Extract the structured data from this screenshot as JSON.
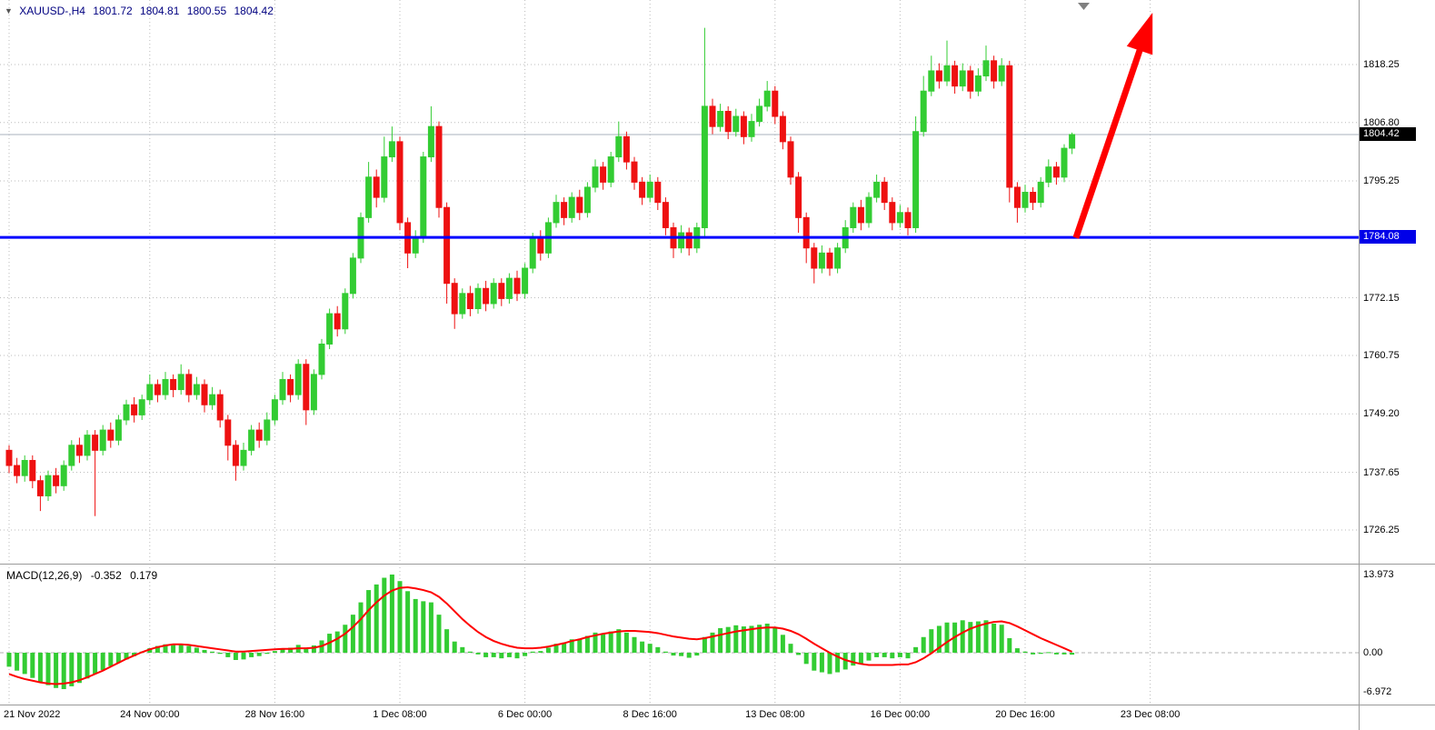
{
  "header": {
    "dropdown_icon": "▼",
    "symbol": "XAUUSD-,H4",
    "open": "1801.72",
    "high": "1804.81",
    "low": "1800.55",
    "close": "1804.42"
  },
  "macd": {
    "label": "MACD(12,26,9)",
    "main": "-0.352",
    "signal": "0.179"
  },
  "price_axis": {
    "ticks": [
      1818.25,
      1806.8,
      1795.25,
      1772.15,
      1760.75,
      1749.2,
      1737.65,
      1726.25
    ],
    "bid": "1804.42",
    "hline": "1784.08"
  },
  "macd_axis": {
    "ticks": [
      {
        "label": "13.973",
        "v": 13.973
      },
      {
        "label": "0.00",
        "v": 0
      },
      {
        "label": "-6.972",
        "v": -6.972
      }
    ]
  },
  "time_axis": {
    "labels": [
      "21 Nov 2022",
      "24 Nov 00:00",
      "28 Nov 16:00",
      "1 Dec 08:00",
      "6 Dec 00:00",
      "8 Dec 16:00",
      "13 Dec 08:00",
      "16 Dec 00:00",
      "20 Dec 16:00",
      "23 Dec 08:00"
    ],
    "bars": [
      0,
      18,
      34,
      50,
      66,
      82,
      98,
      114,
      130,
      146
    ]
  },
  "colors": {
    "background": "#FFFFFF",
    "grid": "#BBBBBB",
    "macd_zero": "#B0B0B0",
    "separator": "#9A9A9A",
    "bull": "#33CC33",
    "bear": "#EE1111",
    "hline": "#0000FF",
    "bid_line": "#A8B0BD",
    "bid_badge_bg": "#000000",
    "hline_badge_bg": "#0000E8",
    "macd_hist": "#33CC33",
    "macd_signal": "#FF0000",
    "arrow": "#FF0000",
    "axis_text": "#000000",
    "quote_text": "#000080",
    "shift_marker": "#808080"
  },
  "chart_data": {
    "type": "candlestick",
    "symbol": "XAUUSD-",
    "timeframe": "H4",
    "title": "XAUUSD- H4 with MACD(12,26,9)",
    "ylim_visible": [
      1719,
      1831
    ],
    "grid": true,
    "current_quote": {
      "open": 1801.72,
      "high": 1804.81,
      "low": 1800.55,
      "close": 1804.42
    },
    "candles": [
      [
        1742,
        1743,
        1737.5,
        1739
      ],
      [
        1739,
        1740.5,
        1735.5,
        1737
      ],
      [
        1737,
        1741,
        1735.8,
        1740
      ],
      [
        1740,
        1741,
        1734.5,
        1736
      ],
      [
        1736,
        1737,
        1730,
        1733
      ],
      [
        1733,
        1738,
        1732,
        1737
      ],
      [
        1737,
        1738.5,
        1733.5,
        1735
      ],
      [
        1735,
        1740,
        1734,
        1739
      ],
      [
        1739,
        1744,
        1738,
        1743
      ],
      [
        1743,
        1744.5,
        1739.5,
        1741
      ],
      [
        1741,
        1746,
        1740,
        1745
      ],
      [
        1745,
        1746,
        1729,
        1742
      ],
      [
        1742,
        1747,
        1741,
        1746
      ],
      [
        1746,
        1747.5,
        1742.5,
        1744
      ],
      [
        1744,
        1749,
        1743,
        1748
      ],
      [
        1748,
        1752,
        1747,
        1751
      ],
      [
        1751,
        1752.5,
        1747.5,
        1749
      ],
      [
        1749,
        1753,
        1748,
        1752
      ],
      [
        1752,
        1757,
        1751,
        1755
      ],
      [
        1755,
        1756,
        1751.5,
        1753
      ],
      [
        1753,
        1757.5,
        1752,
        1756
      ],
      [
        1756,
        1757,
        1752.5,
        1754
      ],
      [
        1754,
        1759,
        1753,
        1757
      ],
      [
        1757,
        1758,
        1751.5,
        1753
      ],
      [
        1753,
        1756.5,
        1752,
        1755
      ],
      [
        1755,
        1756,
        1749.5,
        1751
      ],
      [
        1751,
        1754.5,
        1750,
        1753
      ],
      [
        1753,
        1754,
        1746.5,
        1748
      ],
      [
        1748,
        1749,
        1740,
        1743
      ],
      [
        1743,
        1744,
        1736,
        1739
      ],
      [
        1739,
        1743.5,
        1738,
        1742
      ],
      [
        1742,
        1747,
        1741,
        1746
      ],
      [
        1746,
        1747.5,
        1742.5,
        1744
      ],
      [
        1744,
        1749.5,
        1743,
        1748
      ],
      [
        1748,
        1753,
        1747,
        1752
      ],
      [
        1752,
        1757.5,
        1751,
        1756
      ],
      [
        1756,
        1757,
        1751.5,
        1753
      ],
      [
        1753,
        1760,
        1752,
        1759
      ],
      [
        1759,
        1760,
        1747,
        1750
      ],
      [
        1750,
        1758,
        1749,
        1757
      ],
      [
        1757,
        1764,
        1756,
        1763
      ],
      [
        1763,
        1770,
        1762,
        1769
      ],
      [
        1769,
        1770.5,
        1764.5,
        1766
      ],
      [
        1766,
        1774,
        1765,
        1773
      ],
      [
        1773,
        1781,
        1772,
        1780
      ],
      [
        1780,
        1789,
        1779,
        1788
      ],
      [
        1788,
        1799,
        1787,
        1796
      ],
      [
        1796,
        1797.5,
        1790,
        1792
      ],
      [
        1792,
        1804,
        1791,
        1800
      ],
      [
        1800,
        1806,
        1799,
        1803
      ],
      [
        1803,
        1804,
        1785.5,
        1787
      ],
      [
        1787,
        1788,
        1778,
        1781
      ],
      [
        1781,
        1785.5,
        1780,
        1784
      ],
      [
        1784,
        1801,
        1783,
        1800
      ],
      [
        1800,
        1810,
        1799,
        1806
      ],
      [
        1806,
        1807,
        1788,
        1790
      ],
      [
        1790,
        1791,
        1771,
        1775
      ],
      [
        1775,
        1776,
        1766,
        1769
      ],
      [
        1769,
        1774,
        1768,
        1773
      ],
      [
        1773,
        1774.5,
        1768.5,
        1770
      ],
      [
        1770,
        1775,
        1769,
        1774
      ],
      [
        1774,
        1775.5,
        1769.5,
        1771
      ],
      [
        1771,
        1776,
        1770,
        1775
      ],
      [
        1775,
        1776,
        1770.5,
        1772
      ],
      [
        1772,
        1777,
        1771,
        1776
      ],
      [
        1776,
        1777.5,
        1771.5,
        1773
      ],
      [
        1773,
        1779,
        1772,
        1778
      ],
      [
        1778,
        1785,
        1777,
        1784
      ],
      [
        1784,
        1785.5,
        1779.5,
        1781
      ],
      [
        1781,
        1788,
        1780,
        1787
      ],
      [
        1787,
        1792.5,
        1786,
        1791
      ],
      [
        1791,
        1792,
        1786.5,
        1788
      ],
      [
        1788,
        1793,
        1787,
        1792
      ],
      [
        1792,
        1793.5,
        1787.5,
        1789
      ],
      [
        1789,
        1795,
        1788,
        1794
      ],
      [
        1794,
        1799.5,
        1793,
        1798
      ],
      [
        1798,
        1799,
        1793.5,
        1795
      ],
      [
        1795,
        1801,
        1794,
        1800
      ],
      [
        1800,
        1807,
        1799,
        1804
      ],
      [
        1804,
        1805,
        1797.5,
        1799
      ],
      [
        1799,
        1800,
        1793.5,
        1795
      ],
      [
        1795,
        1796,
        1790.5,
        1792
      ],
      [
        1792,
        1796.5,
        1791,
        1795
      ],
      [
        1795,
        1796,
        1789.5,
        1791
      ],
      [
        1791,
        1792,
        1784.5,
        1786
      ],
      [
        1786,
        1787,
        1780,
        1782
      ],
      [
        1782,
        1786.5,
        1781,
        1785
      ],
      [
        1785,
        1786,
        1780.5,
        1782
      ],
      [
        1782,
        1787,
        1781,
        1786
      ],
      [
        1786,
        1825.5,
        1784,
        1810
      ],
      [
        1810,
        1811.5,
        1804.5,
        1806
      ],
      [
        1806,
        1810.5,
        1805,
        1809
      ],
      [
        1809,
        1810,
        1803.5,
        1805
      ],
      [
        1805,
        1809.5,
        1804,
        1808
      ],
      [
        1808,
        1809,
        1802.5,
        1804
      ],
      [
        1804,
        1808.5,
        1803,
        1807
      ],
      [
        1807,
        1811.5,
        1806,
        1810
      ],
      [
        1810,
        1815,
        1809,
        1813
      ],
      [
        1813,
        1814,
        1806.5,
        1808
      ],
      [
        1808,
        1809,
        1801.5,
        1803
      ],
      [
        1803,
        1804,
        1794.5,
        1796
      ],
      [
        1796,
        1797,
        1785,
        1788
      ],
      [
        1788,
        1789,
        1779,
        1782
      ],
      [
        1782,
        1783,
        1775,
        1778
      ],
      [
        1778,
        1782.5,
        1777,
        1781
      ],
      [
        1781,
        1782,
        1776.5,
        1778
      ],
      [
        1778,
        1783,
        1777,
        1782
      ],
      [
        1782,
        1787.5,
        1781,
        1786
      ],
      [
        1786,
        1791,
        1785,
        1790
      ],
      [
        1790,
        1791.5,
        1785.5,
        1787
      ],
      [
        1787,
        1793,
        1786,
        1792
      ],
      [
        1792,
        1796.5,
        1791,
        1795
      ],
      [
        1795,
        1796,
        1789.5,
        1791
      ],
      [
        1791,
        1792,
        1785.5,
        1787
      ],
      [
        1787,
        1790.5,
        1786,
        1789
      ],
      [
        1789,
        1790,
        1784.5,
        1786
      ],
      [
        1786,
        1808,
        1785,
        1805
      ],
      [
        1805,
        1816,
        1804,
        1813
      ],
      [
        1813,
        1820,
        1812,
        1817
      ],
      [
        1817,
        1818.5,
        1813.5,
        1815
      ],
      [
        1815,
        1823,
        1814,
        1818
      ],
      [
        1818,
        1819,
        1812.5,
        1814
      ],
      [
        1814,
        1818.5,
        1813,
        1817
      ],
      [
        1817,
        1818,
        1811.5,
        1813
      ],
      [
        1813,
        1817.5,
        1812,
        1816
      ],
      [
        1816,
        1822,
        1815,
        1819
      ],
      [
        1819,
        1820,
        1813.5,
        1815
      ],
      [
        1815,
        1819.5,
        1814,
        1818
      ],
      [
        1818,
        1819,
        1791,
        1794
      ],
      [
        1794,
        1795,
        1787,
        1790
      ],
      [
        1790,
        1794.5,
        1789,
        1793
      ],
      [
        1793,
        1794,
        1789.5,
        1791
      ],
      [
        1791,
        1796,
        1790,
        1795
      ],
      [
        1795,
        1799.5,
        1794,
        1798
      ],
      [
        1798,
        1799,
        1794.5,
        1796
      ],
      [
        1796,
        1802.5,
        1795,
        1801.7
      ],
      [
        1801.72,
        1804.81,
        1800.55,
        1804.42
      ]
    ],
    "macd": {
      "params": "12,26,9",
      "main_value": -0.352,
      "signal_value": 0.179,
      "range": [
        -6.972,
        13.973
      ],
      "histogram": [
        -2.5,
        -3.2,
        -3.8,
        -4.5,
        -5.2,
        -5.8,
        -6.3,
        -6.5,
        -6.0,
        -5.4,
        -4.6,
        -3.8,
        -3.1,
        -2.4,
        -1.8,
        -1.2,
        -0.6,
        0.2,
        0.8,
        1.2,
        1.5,
        1.6,
        1.5,
        1.2,
        0.9,
        0.5,
        0.2,
        -0.2,
        -0.8,
        -1.3,
        -1.2,
        -0.8,
        -0.6,
        -0.2,
        0.3,
        0.8,
        0.9,
        1.4,
        0.9,
        1.3,
        2.2,
        3.4,
        3.8,
        5.0,
        6.8,
        9.0,
        11.2,
        12.2,
        13.4,
        13.973,
        12.8,
        11.0,
        9.6,
        9.2,
        9.0,
        6.8,
        4.2,
        2.0,
        1.0,
        0.2,
        -0.3,
        -0.8,
        -0.8,
        -1.0,
        -0.8,
        -1.0,
        -0.6,
        0.2,
        0.3,
        0.9,
        1.6,
        1.8,
        2.4,
        2.4,
        3.0,
        3.6,
        3.4,
        3.8,
        4.2,
        3.6,
        2.8,
        2.0,
        1.6,
        1.0,
        0.2,
        -0.5,
        -0.6,
        -0.9,
        -0.5,
        2.8,
        3.6,
        4.4,
        4.6,
        4.9,
        4.7,
        4.8,
        5.0,
        5.2,
        4.4,
        3.2,
        1.6,
        -0.4,
        -2.0,
        -3.2,
        -3.5,
        -3.8,
        -3.5,
        -3.0,
        -2.3,
        -2.0,
        -1.4,
        -0.8,
        -0.8,
        -1.0,
        -0.8,
        -1.0,
        1.0,
        2.8,
        4.2,
        4.8,
        5.4,
        5.4,
        5.8,
        5.5,
        5.6,
        5.8,
        5.2,
        5.0,
        2.6,
        0.8,
        0.2,
        -0.3,
        -0.2,
        0.1,
        -0.3,
        -0.3,
        -0.352
      ],
      "signal": [
        -3.8,
        -4.3,
        -4.7,
        -5.0,
        -5.3,
        -5.5,
        -5.6,
        -5.5,
        -5.3,
        -4.9,
        -4.4,
        -3.8,
        -3.2,
        -2.5,
        -1.8,
        -1.1,
        -0.5,
        0.1,
        0.6,
        1.0,
        1.3,
        1.5,
        1.5,
        1.4,
        1.2,
        1.0,
        0.8,
        0.6,
        0.4,
        0.2,
        0.2,
        0.3,
        0.4,
        0.5,
        0.6,
        0.7,
        0.7,
        0.8,
        0.8,
        0.9,
        1.2,
        1.8,
        2.5,
        3.4,
        4.6,
        6.0,
        7.6,
        9.0,
        10.2,
        11.1,
        11.6,
        11.7,
        11.5,
        11.2,
        10.8,
        10.0,
        8.8,
        7.4,
        6.0,
        4.8,
        3.7,
        2.8,
        2.1,
        1.6,
        1.2,
        0.9,
        0.8,
        0.8,
        0.9,
        1.1,
        1.4,
        1.7,
        2.1,
        2.4,
        2.8,
        3.1,
        3.4,
        3.6,
        3.8,
        3.9,
        3.9,
        3.8,
        3.7,
        3.5,
        3.2,
        2.9,
        2.7,
        2.5,
        2.4,
        2.6,
        2.9,
        3.2,
        3.5,
        3.8,
        4.0,
        4.2,
        4.4,
        4.5,
        4.5,
        4.3,
        3.9,
        3.3,
        2.5,
        1.6,
        0.8,
        0.0,
        -0.7,
        -1.3,
        -1.7,
        -2.0,
        -2.2,
        -2.2,
        -2.2,
        -2.2,
        -2.1,
        -2.1,
        -1.7,
        -1.0,
        -0.1,
        0.9,
        1.9,
        2.8,
        3.6,
        4.3,
        4.8,
        5.2,
        5.5,
        5.6,
        5.3,
        4.7,
        4.0,
        3.3,
        2.6,
        2.0,
        1.4,
        0.8,
        0.179
      ]
    },
    "annotations": {
      "bid_price": 1804.42,
      "horizontal_line": {
        "price": 1784.08
      },
      "trend_arrow": {
        "from_bar": 136.5,
        "from_price": 1784.0,
        "to_bar": 146.3,
        "to_price": 1828.5
      }
    }
  }
}
